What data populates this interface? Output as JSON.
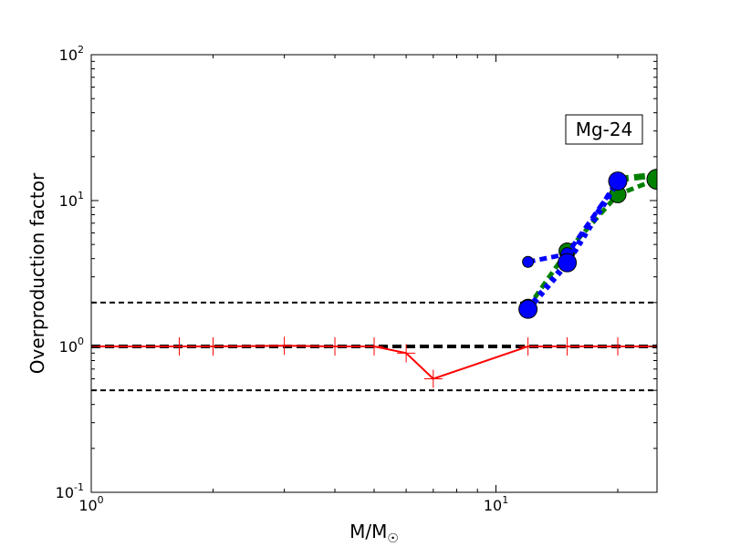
{
  "chart_data": {
    "type": "line",
    "xlabel": "M/M",
    "xlabel_symbol": "☉",
    "ylabel": "Overproduction factor",
    "x_scale": "log",
    "y_scale": "log",
    "xlim": [
      1,
      25
    ],
    "ylim": [
      0.1,
      100
    ],
    "x_ticks": [
      {
        "value": 1,
        "base": "10",
        "exp": "0"
      },
      {
        "value": 10,
        "base": "10",
        "exp": "1"
      }
    ],
    "y_ticks": [
      {
        "value": 0.1,
        "base": "10",
        "exp": "-1"
      },
      {
        "value": 1,
        "base": "10",
        "exp": "0"
      },
      {
        "value": 10,
        "base": "10",
        "exp": "1"
      },
      {
        "value": 100,
        "base": "10",
        "exp": "2"
      }
    ],
    "grid": false,
    "annotation": "Mg-24",
    "reference_lines": [
      {
        "y": 2.0,
        "color": "#000000",
        "style": "dashed",
        "width": 2
      },
      {
        "y": 1.0,
        "color": "#000000",
        "style": "dashed",
        "width": 4
      },
      {
        "y": 0.5,
        "color": "#000000",
        "style": "dashed",
        "width": 2
      }
    ],
    "series": [
      {
        "color": "#ff0000",
        "style": "solid",
        "width": 2,
        "marker": "plus",
        "x": [
          1,
          1.65,
          2,
          3,
          4,
          5,
          6,
          7,
          12,
          15,
          20,
          25
        ],
        "y": [
          1.0,
          1.0,
          1.0,
          1.01,
          1.0,
          1.0,
          0.9,
          0.6,
          1.0,
          1.0,
          1.0,
          1.0
        ]
      },
      {
        "color": "#008000",
        "style": "dashed",
        "width": 5,
        "marker": "circle",
        "x": [
          12,
          15,
          20,
          25
        ],
        "y": [
          1.85,
          4.5,
          11.0,
          14.0
        ],
        "marker_sizes": [
          9,
          9,
          9,
          11
        ]
      },
      {
        "color": "#008000",
        "style": "dashed",
        "width": 7,
        "marker": "none",
        "x": [
          20,
          25
        ],
        "y": [
          14.0,
          15.0
        ]
      },
      {
        "color": "#0000ff",
        "style": "dashed",
        "width": 5,
        "marker": "circle",
        "x": [
          12,
          15,
          20
        ],
        "y": [
          3.8,
          4.3,
          13.5
        ],
        "marker_sizes": [
          6,
          7,
          8
        ]
      },
      {
        "color": "#0000ff",
        "style": "dotted",
        "width": 7,
        "marker": "circle",
        "x": [
          12,
          15,
          20
        ],
        "y": [
          1.8,
          3.75,
          13.6
        ],
        "marker_sizes": [
          10,
          10,
          10
        ]
      }
    ]
  }
}
